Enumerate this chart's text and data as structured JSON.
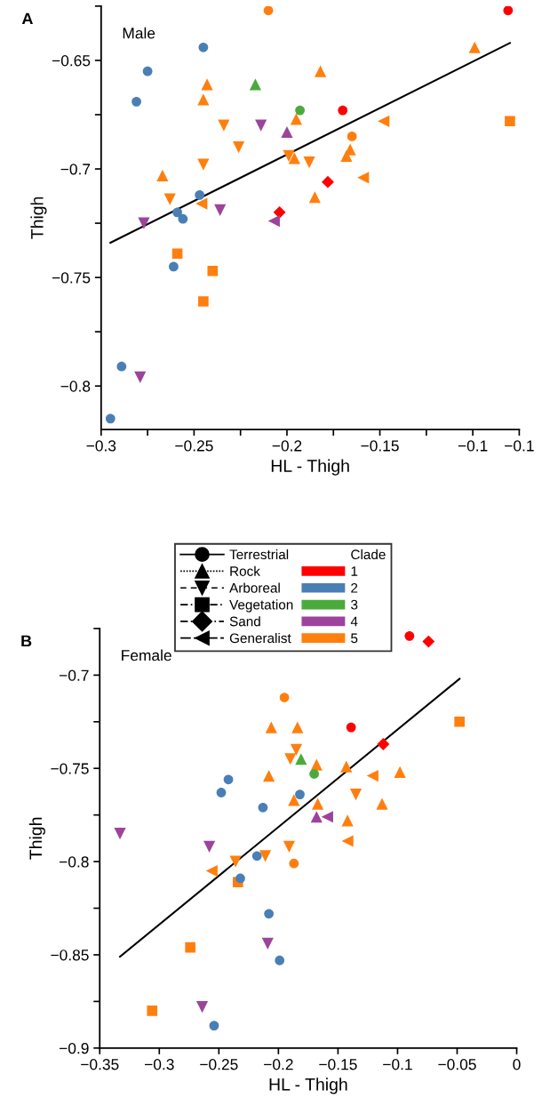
{
  "chart_data": [
    {
      "type": "scatter",
      "title": "A",
      "xlabel": "HL - Thigh",
      "ylabel": "Thigh",
      "annotations": [
        "Male"
      ],
      "xlim": [
        -0.3,
        -0.075
      ],
      "ylim": [
        -0.82,
        -0.625
      ],
      "xticks": [
        {
          "value": -0.3,
          "label": "−0.3"
        },
        {
          "value": -0.275,
          "label": null
        },
        {
          "value": -0.25,
          "label": "−0.25"
        },
        {
          "value": -0.225,
          "label": null
        },
        {
          "value": -0.2,
          "label": "−0.2"
        },
        {
          "value": -0.175,
          "label": null
        },
        {
          "value": -0.15,
          "label": "−0.15"
        },
        {
          "value": -0.125,
          "label": null
        },
        {
          "value": -0.1,
          "label": "−0.1"
        },
        {
          "value": -0.075,
          "label": "−0.1"
        }
      ],
      "yticks": [
        {
          "value": -0.625,
          "label": null
        },
        {
          "value": -0.65,
          "label": "−0.65"
        },
        {
          "value": -0.675,
          "label": null
        },
        {
          "value": -0.7,
          "label": "−0.7"
        },
        {
          "value": -0.725,
          "label": null
        },
        {
          "value": -0.75,
          "label": "−0.75"
        },
        {
          "value": -0.775,
          "label": null
        },
        {
          "value": -0.8,
          "label": "−0.8"
        }
      ],
      "series": [
        {
          "color": "#ff0000",
          "marker": "circle",
          "x": [
            -0.081,
            -0.17
          ],
          "values": [
            -0.627,
            -0.673
          ]
        },
        {
          "color": "#ff0000",
          "marker": "diamond",
          "x": [
            -0.178,
            -0.204
          ],
          "values": [
            -0.706,
            -0.72
          ]
        },
        {
          "color": "#4a7fb5",
          "marker": "circle",
          "x": [
            -0.245,
            -0.275,
            -0.281,
            -0.247,
            -0.259,
            -0.256,
            -0.261,
            -0.289,
            -0.295
          ],
          "values": [
            -0.644,
            -0.655,
            -0.669,
            -0.712,
            -0.72,
            -0.723,
            -0.745,
            -0.791,
            -0.815
          ]
        },
        {
          "color": "#4aab3c",
          "marker": "circle",
          "x": [
            -0.193
          ],
          "values": [
            -0.673
          ]
        },
        {
          "color": "#4aab3c",
          "marker": "triangle",
          "x": [
            -0.217
          ],
          "values": [
            -0.661
          ]
        },
        {
          "color": "#9c449c",
          "marker": "triangle",
          "x": [
            -0.2
          ],
          "values": [
            -0.683
          ]
        },
        {
          "color": "#9c449c",
          "marker": "triangle-down",
          "x": [
            -0.214,
            -0.236,
            -0.277,
            -0.279
          ],
          "values": [
            -0.68,
            -0.719,
            -0.725,
            -0.796
          ]
        },
        {
          "color": "#9c449c",
          "marker": "triangle-left",
          "x": [
            -0.207
          ],
          "values": [
            -0.724
          ]
        },
        {
          "color": "#ff7f0e",
          "marker": "circle",
          "x": [
            -0.21,
            -0.165
          ],
          "values": [
            -0.627,
            -0.685
          ]
        },
        {
          "color": "#ff7f0e",
          "marker": "triangle",
          "x": [
            -0.243,
            -0.245,
            -0.182,
            -0.099,
            -0.195,
            -0.166,
            -0.168,
            -0.196,
            -0.267,
            -0.185
          ],
          "values": [
            -0.661,
            -0.668,
            -0.655,
            -0.644,
            -0.677,
            -0.691,
            -0.694,
            -0.695,
            -0.703,
            -0.713
          ]
        },
        {
          "color": "#ff7f0e",
          "marker": "triangle-down",
          "x": [
            -0.234,
            -0.226,
            -0.199,
            -0.188,
            -0.245,
            -0.263
          ],
          "values": [
            -0.68,
            -0.69,
            -0.694,
            -0.697,
            -0.698,
            -0.714
          ]
        },
        {
          "color": "#ff7f0e",
          "marker": "square",
          "x": [
            -0.08,
            -0.259,
            -0.24,
            -0.245
          ],
          "values": [
            -0.678,
            -0.739,
            -0.747,
            -0.761
          ]
        },
        {
          "color": "#ff7f0e",
          "marker": "triangle-left",
          "x": [
            -0.148,
            -0.159,
            -0.246
          ],
          "values": [
            -0.678,
            -0.704,
            -0.716
          ]
        },
        {
          "type": "line",
          "color": "#000000",
          "x": [
            -0.295,
            -0.08
          ],
          "values": [
            -0.734,
            -0.642
          ]
        }
      ]
    },
    {
      "type": "scatter",
      "title": "B",
      "xlabel": "HL - Thigh",
      "ylabel": "Thigh",
      "annotations": [
        "Female",
        "Terrestrial",
        "Rock",
        "Arboreal",
        "Vegetation",
        "Sand",
        "Generalist"
      ],
      "legend": "top",
      "legend_title": "Clade",
      "xlim": [
        -0.35,
        0
      ],
      "ylim": [
        -0.9,
        -0.675
      ],
      "xticks": [
        {
          "value": -0.35,
          "label": "−0.35"
        },
        {
          "value": -0.3,
          "label": "−0.3"
        },
        {
          "value": -0.25,
          "label": "−0.25"
        },
        {
          "value": -0.2,
          "label": "−0.2"
        },
        {
          "value": -0.15,
          "label": "−0.15"
        },
        {
          "value": -0.1,
          "label": "−0.1"
        },
        {
          "value": -0.05,
          "label": "−0.05"
        },
        0
      ],
      "yticks": [
        {
          "value": -0.675,
          "label": null
        },
        {
          "value": -0.7,
          "label": "−0.7"
        },
        {
          "value": -0.725,
          "label": null
        },
        {
          "value": -0.75,
          "label": "−0.75"
        },
        {
          "value": -0.775,
          "label": null
        },
        {
          "value": -0.8,
          "label": "−0.8"
        },
        {
          "value": -0.825,
          "label": null
        },
        {
          "value": -0.85,
          "label": "−0.85"
        },
        {
          "value": -0.875,
          "label": null
        },
        {
          "value": -0.9,
          "label": "−0.9"
        }
      ],
      "series": [
        {
          "name": "1",
          "color": "#ff0000",
          "marker": "circle",
          "x": [
            -0.09,
            -0.139
          ],
          "values": [
            -0.679,
            -0.728
          ]
        },
        {
          "color": "#ff0000",
          "marker": "diamond",
          "x": [
            -0.074,
            -0.112
          ],
          "values": [
            -0.682,
            -0.737
          ]
        },
        {
          "name": "2",
          "color": "#4a7fb5",
          "marker": "circle",
          "x": [
            -0.242,
            -0.248,
            -0.182,
            -0.213,
            -0.218,
            -0.232,
            -0.208,
            -0.199,
            -0.254
          ],
          "values": [
            -0.756,
            -0.763,
            -0.764,
            -0.771,
            -0.797,
            -0.809,
            -0.828,
            -0.853,
            -0.888
          ]
        },
        {
          "name": "3",
          "color": "#4aab3c",
          "marker": "circle",
          "x": [
            -0.17
          ],
          "values": [
            -0.753
          ]
        },
        {
          "color": "#4aab3c",
          "marker": "triangle",
          "x": [
            -0.181
          ],
          "values": [
            -0.745
          ]
        },
        {
          "name": "4",
          "color": "#9c449c",
          "marker": "triangle",
          "x": [
            -0.168
          ],
          "values": [
            -0.776
          ]
        },
        {
          "color": "#9c449c",
          "marker": "triangle-down",
          "x": [
            -0.333,
            -0.258,
            -0.209,
            -0.264
          ],
          "values": [
            -0.785,
            -0.792,
            -0.844,
            -0.878
          ]
        },
        {
          "color": "#9c449c",
          "marker": "triangle-left",
          "x": [
            -0.159
          ],
          "values": [
            -0.776
          ]
        },
        {
          "name": "5",
          "color": "#ff7f0e",
          "marker": "circle",
          "x": [
            -0.195,
            -0.187
          ],
          "values": [
            -0.712,
            -0.801
          ]
        },
        {
          "color": "#ff7f0e",
          "marker": "triangle",
          "x": [
            -0.206,
            -0.184,
            -0.168,
            -0.143,
            -0.098,
            -0.208,
            -0.187,
            -0.167,
            -0.113,
            -0.142
          ],
          "values": [
            -0.728,
            -0.728,
            -0.748,
            -0.749,
            -0.752,
            -0.754,
            -0.767,
            -0.769,
            -0.769,
            -0.778
          ]
        },
        {
          "color": "#ff7f0e",
          "marker": "triangle-down",
          "x": [
            -0.185,
            -0.19,
            -0.135,
            -0.191,
            -0.211,
            -0.236
          ],
          "values": [
            -0.74,
            -0.745,
            -0.764,
            -0.792,
            -0.797,
            -0.8
          ]
        },
        {
          "color": "#ff7f0e",
          "marker": "square",
          "x": [
            -0.048,
            -0.234,
            -0.274,
            -0.306
          ],
          "values": [
            -0.725,
            -0.811,
            -0.846,
            -0.88
          ]
        },
        {
          "color": "#ff7f0e",
          "marker": "triangle-left",
          "x": [
            -0.121,
            -0.142,
            -0.256
          ],
          "values": [
            -0.754,
            -0.789,
            -0.805
          ]
        },
        {
          "type": "line",
          "color": "#000000",
          "x": [
            -0.333,
            -0.048
          ],
          "values": [
            -0.851,
            -0.702
          ]
        }
      ]
    }
  ]
}
